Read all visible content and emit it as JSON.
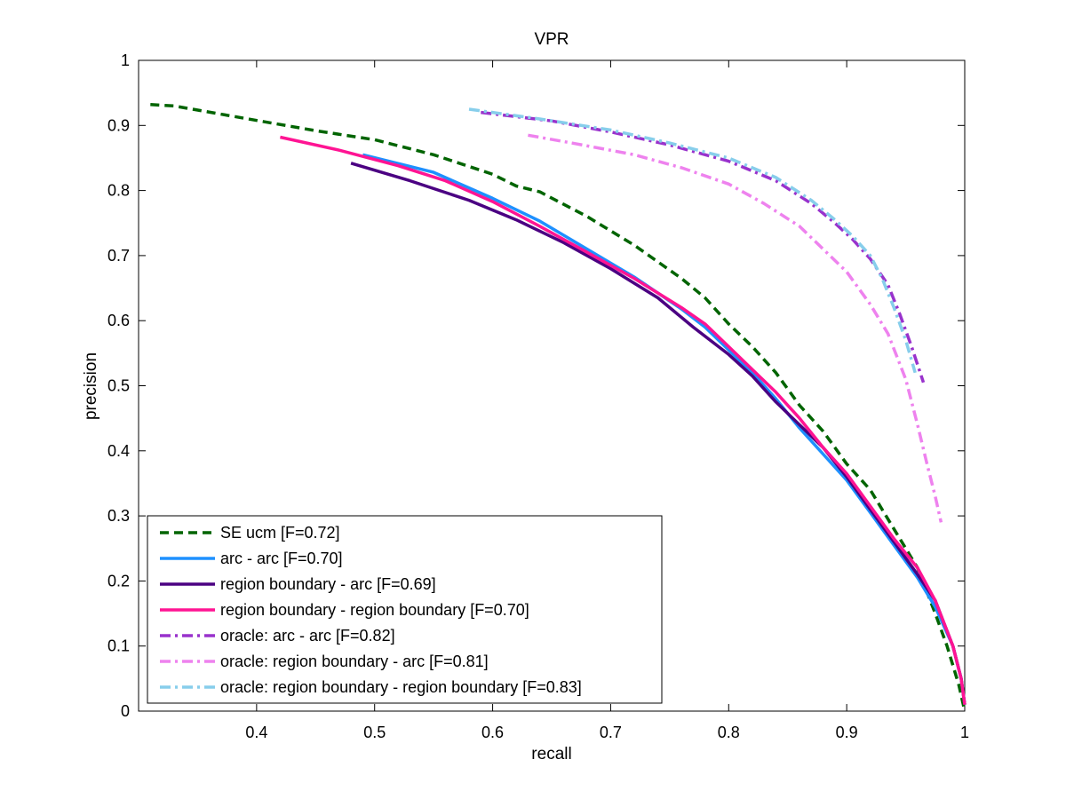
{
  "chart_data": {
    "type": "line",
    "title": "VPR",
    "xlabel": "recall",
    "ylabel": "precision",
    "xlim": [
      0.3,
      1
    ],
    "ylim": [
      0,
      1
    ],
    "xticks": [
      "0.4",
      "0.5",
      "0.6",
      "0.7",
      "0.8",
      "0.9",
      "1"
    ],
    "yticks": [
      "0",
      "0.1",
      "0.2",
      "0.3",
      "0.4",
      "0.5",
      "0.6",
      "0.7",
      "0.8",
      "0.9",
      "1"
    ],
    "grid": false,
    "legend_position": "bottom-left",
    "series": [
      {
        "name": "SE ucm [F=0.72]",
        "color": "#006400",
        "style": "dashed",
        "points": [
          [
            0.31,
            0.932
          ],
          [
            0.33,
            0.93
          ],
          [
            0.38,
            0.914
          ],
          [
            0.45,
            0.892
          ],
          [
            0.5,
            0.878
          ],
          [
            0.55,
            0.855
          ],
          [
            0.6,
            0.825
          ],
          [
            0.62,
            0.807
          ],
          [
            0.64,
            0.798
          ],
          [
            0.68,
            0.76
          ],
          [
            0.72,
            0.716
          ],
          [
            0.76,
            0.665
          ],
          [
            0.78,
            0.635
          ],
          [
            0.8,
            0.595
          ],
          [
            0.82,
            0.56
          ],
          [
            0.84,
            0.52
          ],
          [
            0.86,
            0.47
          ],
          [
            0.88,
            0.43
          ],
          [
            0.9,
            0.38
          ],
          [
            0.92,
            0.34
          ],
          [
            0.94,
            0.28
          ],
          [
            0.96,
            0.22
          ],
          [
            0.975,
            0.15
          ],
          [
            0.985,
            0.1
          ],
          [
            0.995,
            0.04
          ],
          [
            1.0,
            0.0
          ]
        ]
      },
      {
        "name": "arc - arc [F=0.70]",
        "color": "#1E90FF",
        "style": "solid",
        "points": [
          [
            0.49,
            0.855
          ],
          [
            0.55,
            0.828
          ],
          [
            0.6,
            0.788
          ],
          [
            0.64,
            0.753
          ],
          [
            0.68,
            0.71
          ],
          [
            0.72,
            0.667
          ],
          [
            0.76,
            0.618
          ],
          [
            0.78,
            0.59
          ],
          [
            0.8,
            0.555
          ],
          [
            0.82,
            0.52
          ],
          [
            0.84,
            0.48
          ],
          [
            0.86,
            0.435
          ],
          [
            0.88,
            0.395
          ],
          [
            0.9,
            0.355
          ],
          [
            0.92,
            0.305
          ],
          [
            0.94,
            0.255
          ],
          [
            0.96,
            0.205
          ],
          [
            0.975,
            0.16
          ],
          [
            0.99,
            0.1
          ],
          [
            0.997,
            0.05
          ],
          [
            1.0,
            0.01
          ]
        ]
      },
      {
        "name": "region boundary - arc [F=0.69]",
        "color": "#4B0082",
        "style": "solid",
        "points": [
          [
            0.48,
            0.842
          ],
          [
            0.53,
            0.815
          ],
          [
            0.58,
            0.785
          ],
          [
            0.62,
            0.755
          ],
          [
            0.66,
            0.72
          ],
          [
            0.7,
            0.68
          ],
          [
            0.74,
            0.635
          ],
          [
            0.77,
            0.59
          ],
          [
            0.8,
            0.548
          ],
          [
            0.82,
            0.515
          ],
          [
            0.84,
            0.475
          ],
          [
            0.86,
            0.44
          ],
          [
            0.88,
            0.405
          ],
          [
            0.9,
            0.36
          ],
          [
            0.92,
            0.31
          ],
          [
            0.94,
            0.26
          ],
          [
            0.96,
            0.21
          ],
          [
            0.975,
            0.17
          ],
          [
            0.99,
            0.1
          ],
          [
            0.997,
            0.05
          ],
          [
            1.0,
            0.01
          ]
        ]
      },
      {
        "name": "region boundary - region boundary [F=0.70]",
        "color": "#FF1493",
        "style": "solid",
        "points": [
          [
            0.42,
            0.882
          ],
          [
            0.47,
            0.862
          ],
          [
            0.52,
            0.838
          ],
          [
            0.56,
            0.815
          ],
          [
            0.6,
            0.783
          ],
          [
            0.64,
            0.745
          ],
          [
            0.68,
            0.705
          ],
          [
            0.72,
            0.665
          ],
          [
            0.76,
            0.62
          ],
          [
            0.78,
            0.595
          ],
          [
            0.8,
            0.56
          ],
          [
            0.82,
            0.525
          ],
          [
            0.84,
            0.49
          ],
          [
            0.86,
            0.45
          ],
          [
            0.88,
            0.405
          ],
          [
            0.9,
            0.365
          ],
          [
            0.92,
            0.315
          ],
          [
            0.94,
            0.265
          ],
          [
            0.96,
            0.22
          ],
          [
            0.975,
            0.17
          ],
          [
            0.99,
            0.1
          ],
          [
            0.997,
            0.05
          ],
          [
            1.0,
            0.01
          ]
        ]
      },
      {
        "name": "oracle: arc - arc [F=0.82]",
        "color": "#9932CC",
        "style": "dashdot",
        "points": [
          [
            0.59,
            0.92
          ],
          [
            0.65,
            0.907
          ],
          [
            0.7,
            0.89
          ],
          [
            0.75,
            0.87
          ],
          [
            0.8,
            0.845
          ],
          [
            0.84,
            0.815
          ],
          [
            0.87,
            0.78
          ],
          [
            0.89,
            0.75
          ],
          [
            0.905,
            0.725
          ],
          [
            0.92,
            0.695
          ],
          [
            0.935,
            0.655
          ],
          [
            0.945,
            0.61
          ],
          [
            0.955,
            0.56
          ],
          [
            0.965,
            0.505
          ]
        ]
      },
      {
        "name": "oracle: region boundary - arc [F=0.81]",
        "color": "#EE82EE",
        "style": "dashdot",
        "points": [
          [
            0.63,
            0.885
          ],
          [
            0.67,
            0.872
          ],
          [
            0.72,
            0.855
          ],
          [
            0.76,
            0.835
          ],
          [
            0.8,
            0.81
          ],
          [
            0.83,
            0.78
          ],
          [
            0.86,
            0.745
          ],
          [
            0.88,
            0.71
          ],
          [
            0.9,
            0.675
          ],
          [
            0.92,
            0.625
          ],
          [
            0.935,
            0.58
          ],
          [
            0.95,
            0.51
          ],
          [
            0.96,
            0.44
          ],
          [
            0.968,
            0.38
          ],
          [
            0.975,
            0.33
          ],
          [
            0.98,
            0.29
          ]
        ]
      },
      {
        "name": "oracle: region boundary - region boundary [F=0.83]",
        "color": "#87CEEB",
        "style": "dashdot",
        "points": [
          [
            0.58,
            0.925
          ],
          [
            0.64,
            0.91
          ],
          [
            0.7,
            0.893
          ],
          [
            0.75,
            0.873
          ],
          [
            0.8,
            0.85
          ],
          [
            0.84,
            0.82
          ],
          [
            0.87,
            0.785
          ],
          [
            0.89,
            0.755
          ],
          [
            0.905,
            0.73
          ],
          [
            0.92,
            0.7
          ],
          [
            0.93,
            0.665
          ],
          [
            0.94,
            0.62
          ],
          [
            0.95,
            0.57
          ],
          [
            0.958,
            0.52
          ]
        ]
      }
    ]
  }
}
